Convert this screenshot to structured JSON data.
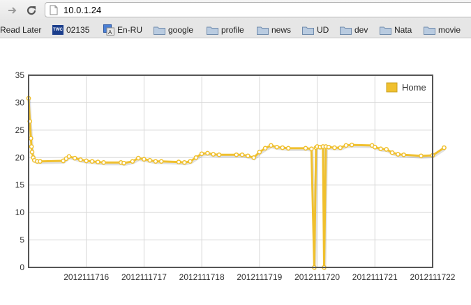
{
  "browser": {
    "url": "10.0.1.24",
    "bookmarks": [
      {
        "label": "Read Later",
        "icon": "none"
      },
      {
        "label": "02135",
        "icon": "twc-icon",
        "badge": "TWC"
      },
      {
        "label": "En-RU",
        "icon": "translate-icon"
      },
      {
        "label": "google",
        "icon": "folder-icon"
      },
      {
        "label": "profile",
        "icon": "folder-icon"
      },
      {
        "label": "news",
        "icon": "folder-icon"
      },
      {
        "label": "UD",
        "icon": "folder-icon"
      },
      {
        "label": "dev",
        "icon": "folder-icon"
      },
      {
        "label": "Nata",
        "icon": "folder-icon"
      },
      {
        "label": "movie",
        "icon": "folder-icon"
      }
    ]
  },
  "chart_data": {
    "type": "line",
    "title": "",
    "xlabel": "",
    "ylabel": "",
    "legend": {
      "position": "top-right"
    },
    "grid": true,
    "ylim": [
      0,
      35
    ],
    "xlim": [
      2012111715,
      2012111722
    ],
    "y_ticks": [
      "0",
      "5",
      "10",
      "15",
      "20",
      "25",
      "30",
      "35"
    ],
    "x_ticks": [
      "2012111716",
      "2012111717",
      "2012111718",
      "2012111719",
      "2012111720",
      "2012111721",
      "2012111722"
    ],
    "colors": {
      "series": "#f0c02e",
      "marker_fill": "#ffffff",
      "grid": "#d8d8d8",
      "axis": "#555555"
    },
    "series": [
      {
        "name": "Home",
        "x": [
          2012111715.0,
          2012111715.02,
          2012111715.04,
          2012111715.05,
          2012111715.06,
          2012111715.08,
          2012111715.1,
          2012111715.15,
          2012111715.2,
          2012111715.6,
          2012111715.65,
          2012111715.7,
          2012111715.8,
          2012111715.9,
          2012111716.0,
          2012111716.1,
          2012111716.2,
          2012111716.3,
          2012111716.6,
          2012111716.65,
          2012111716.8,
          2012111716.9,
          2012111717.0,
          2012111717.1,
          2012111717.2,
          2012111717.3,
          2012111717.6,
          2012111717.7,
          2012111717.8,
          2012111717.9,
          2012111718.0,
          2012111718.1,
          2012111718.2,
          2012111718.3,
          2012111718.6,
          2012111718.7,
          2012111718.8,
          2012111718.9,
          2012111719.0,
          2012111719.1,
          2012111719.2,
          2012111719.3,
          2012111719.4,
          2012111719.5,
          2012111719.8,
          2012111719.9,
          2012111719.95,
          2012111719.98,
          2012111720.0,
          2012111720.05,
          2012111720.1,
          2012111720.12,
          2012111720.15,
          2012111720.2,
          2012111720.3,
          2012111720.4,
          2012111720.5,
          2012111720.6,
          2012111720.95,
          2012111721.0,
          2012111721.1,
          2012111721.2,
          2012111721.3,
          2012111721.4,
          2012111721.5,
          2012111721.8,
          2012111722.0,
          2012111722.2
        ],
        "y": [
          30.8,
          26.6,
          23.5,
          22.0,
          21.0,
          20.0,
          19.5,
          19.3,
          19.3,
          19.4,
          19.8,
          20.2,
          19.9,
          19.6,
          19.4,
          19.3,
          19.2,
          19.1,
          19.1,
          19.0,
          19.3,
          19.9,
          19.7,
          19.5,
          19.3,
          19.3,
          19.2,
          19.1,
          19.3,
          20.0,
          20.7,
          20.8,
          20.6,
          20.5,
          20.5,
          20.5,
          20.3,
          20.0,
          21.0,
          21.7,
          22.2,
          21.9,
          21.8,
          21.7,
          21.7,
          21.6,
          0.0,
          21.8,
          22.0,
          21.9,
          22.0,
          0.0,
          22.0,
          21.9,
          21.8,
          21.8,
          22.2,
          22.3,
          22.2,
          21.9,
          21.6,
          21.5,
          20.9,
          20.6,
          20.5,
          20.3,
          20.4,
          21.8
        ]
      }
    ]
  }
}
